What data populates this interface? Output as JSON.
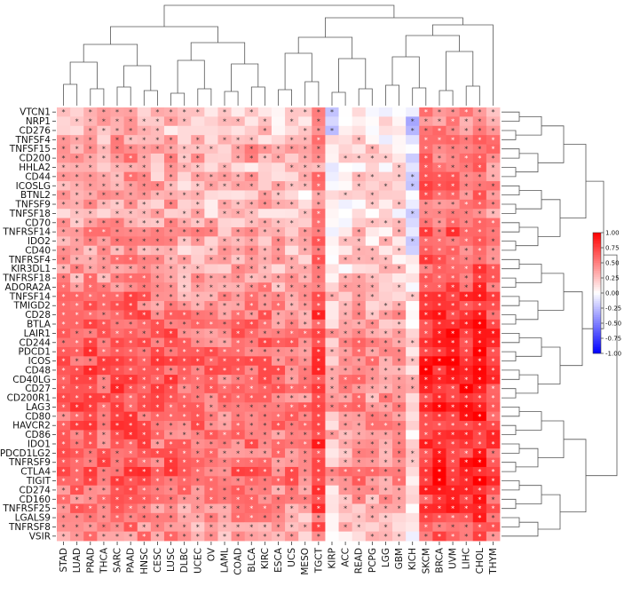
{
  "chart_data": {
    "type": "heatmap",
    "title": "",
    "rows": [
      "VTCN1",
      "NRP1",
      "CD276",
      "TNFSF4",
      "TNFSF15",
      "CD200",
      "HHLA2",
      "CD44",
      "ICOSLG",
      "BTNL2",
      "TNFSF9",
      "TNFSF18",
      "CD70",
      "TNFRSF14",
      "IDO2",
      "CD40",
      "TNFRSF4",
      "KIR3DL1",
      "TNFRSF18",
      "ADORA2A",
      "TNFSF14",
      "TMIGD2",
      "CD28",
      "BTLA",
      "LAIR1",
      "CD244",
      "PDCD1",
      "ICOS",
      "CD48",
      "CD40LG",
      "CD27",
      "CD200R1",
      "LAG3",
      "CD80",
      "HAVCR2",
      "CD86",
      "IDO1",
      "PDCD1LG2",
      "TNFRSF9",
      "CTLA4",
      "TIGIT",
      "CD274",
      "CD160",
      "TNFRSF25",
      "LGALS9",
      "TNFRSF8",
      "VSIR"
    ],
    "columns": [
      "STAD",
      "LUAD",
      "PRAD",
      "THCA",
      "SARC",
      "PAAD",
      "HNSC",
      "CESC",
      "LUSC",
      "DLBC",
      "UCEC",
      "OV",
      "LAML",
      "COAD",
      "BLCA",
      "KIRC",
      "ESCA",
      "UCS",
      "MESO",
      "TGCT",
      "KIRP",
      "ACC",
      "READ",
      "PCPG",
      "LGG",
      "GBM",
      "KICH",
      "SKCM",
      "BRCA",
      "UVM",
      "LIHC",
      "CHOL",
      "THYM"
    ],
    "column_profile": [
      0.3,
      0.35,
      0.38,
      0.32,
      0.42,
      0.44,
      0.4,
      0.3,
      0.35,
      0.2,
      0.25,
      0.22,
      0.2,
      0.28,
      0.3,
      0.28,
      0.22,
      0.2,
      0.15,
      0.55,
      -0.1,
      0.05,
      0.12,
      0.05,
      0.05,
      0.08,
      -0.25,
      0.62,
      0.6,
      0.65,
      0.62,
      0.7,
      0.5
    ],
    "row_profile": [
      0.05,
      0.1,
      0.05,
      0.2,
      0.35,
      0.3,
      0.1,
      0.25,
      0.3,
      0.2,
      0.2,
      0.2,
      0.25,
      0.4,
      0.35,
      0.3,
      0.35,
      0.3,
      0.35,
      0.45,
      0.55,
      0.6,
      0.7,
      0.7,
      0.75,
      0.75,
      0.8,
      0.8,
      0.8,
      0.8,
      0.8,
      0.75,
      0.8,
      0.7,
      0.75,
      0.7,
      0.7,
      0.7,
      0.75,
      0.8,
      0.8,
      0.65,
      0.6,
      0.55,
      0.5,
      0.4,
      0.4
    ],
    "significance_marker": "*",
    "colorbar": {
      "min": -1.0,
      "max": 1.0,
      "ticks": [
        "1.00",
        "0.75",
        "0.50",
        "0.25",
        "0.00",
        "-0.25",
        "-0.50",
        "-0.75",
        "-1.00"
      ],
      "low_color": "#0000ff",
      "mid_color": "#ffffff",
      "high_color": "#ff0000"
    },
    "dendrogram": {
      "columns": "top",
      "rows": "right"
    }
  }
}
